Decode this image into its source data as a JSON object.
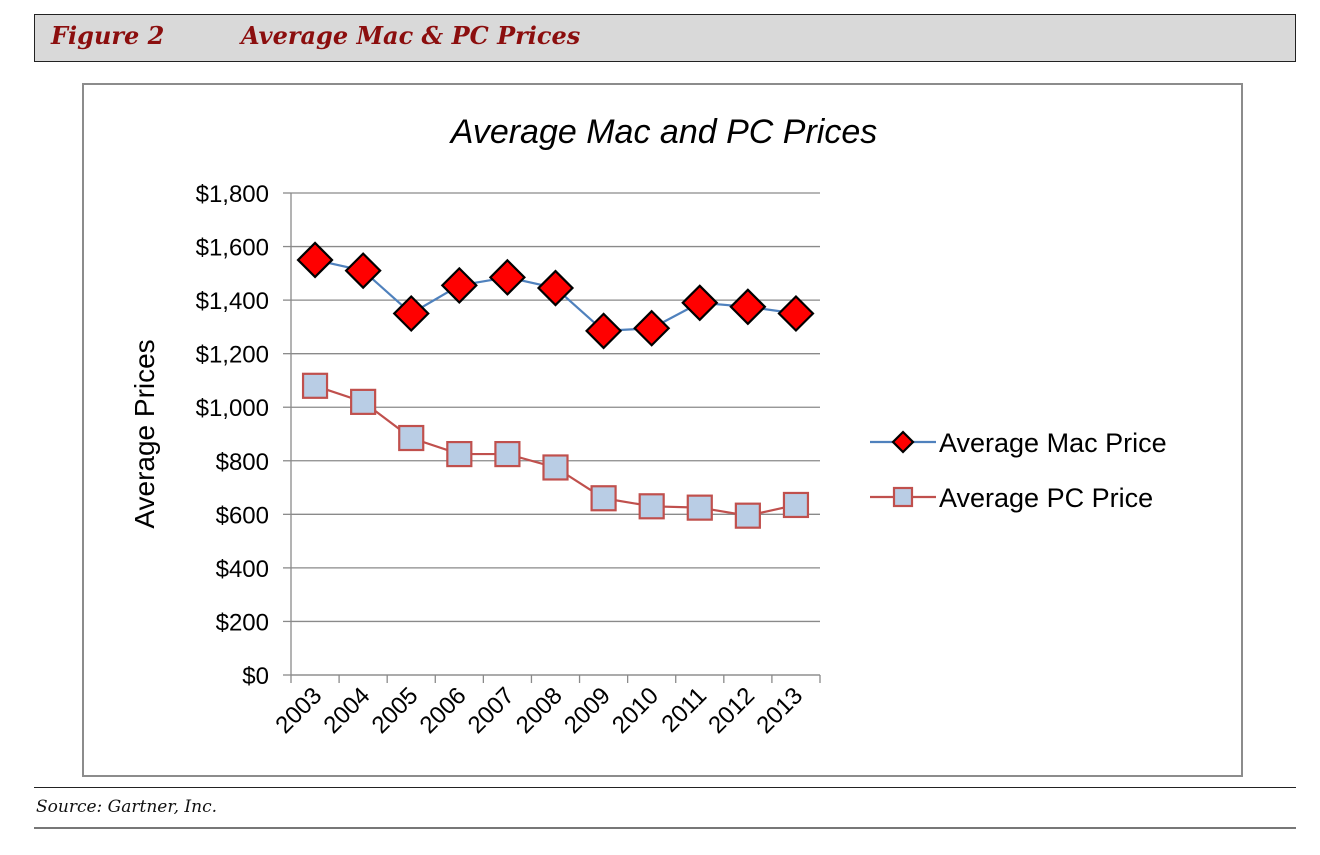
{
  "figure": {
    "label": "Figure 2",
    "title": "Average Mac & PC Prices",
    "source": "Source: Gartner, Inc."
  },
  "colors": {
    "mac_line": "#4f81bd",
    "mac_marker": "#ff0000",
    "pc_line": "#c0504d",
    "pc_marker": "#b9cde5",
    "header_text": "#8b0e0e"
  },
  "chart_data": {
    "type": "line",
    "title": "Average Mac and PC Prices",
    "xlabel": "",
    "ylabel": "Average Prices",
    "categories": [
      "2003",
      "2004",
      "2005",
      "2006",
      "2007",
      "2008",
      "2009",
      "2010",
      "2011",
      "2012",
      "2013"
    ],
    "ylim": [
      0,
      1800
    ],
    "yticks": [
      0,
      200,
      400,
      600,
      800,
      1000,
      1200,
      1400,
      1600,
      1800
    ],
    "ytick_labels": [
      "$0",
      "$200",
      "$400",
      "$600",
      "$800",
      "$1,000",
      "$1,200",
      "$1,400",
      "$1,600",
      "$1,800"
    ],
    "grid": true,
    "legend": "right",
    "series": [
      {
        "name": "Average Mac Price",
        "marker": "diamond",
        "values": [
          1550,
          1510,
          1350,
          1455,
          1485,
          1445,
          1285,
          1295,
          1390,
          1375,
          1350
        ]
      },
      {
        "name": "Average PC Price",
        "marker": "square",
        "values": [
          1080,
          1020,
          885,
          825,
          825,
          775,
          660,
          630,
          625,
          595,
          635
        ]
      }
    ]
  }
}
